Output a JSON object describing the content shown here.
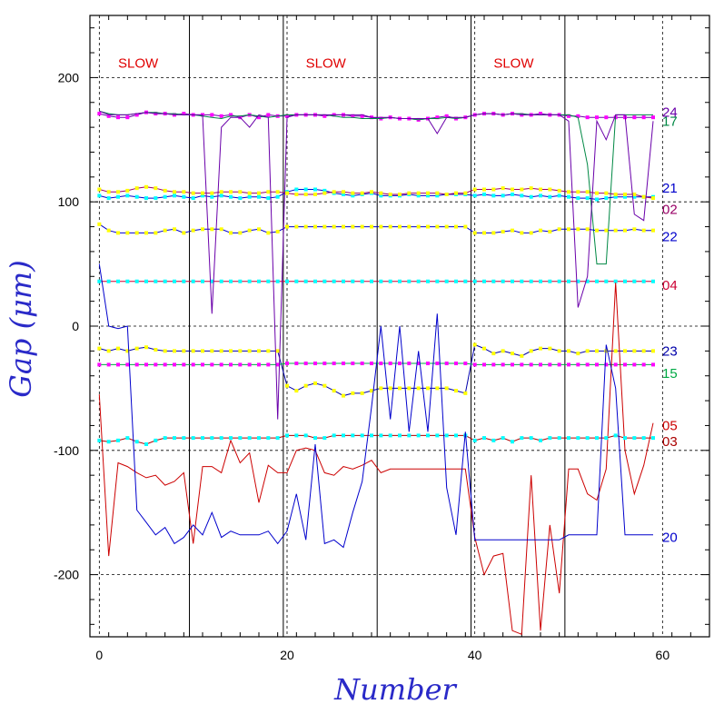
{
  "chart_data": {
    "type": "line",
    "title": "",
    "xlabel": "Number",
    "ylabel": "Gap (μm)",
    "xlim": [
      -1,
      65
    ],
    "ylim": [
      -250,
      250
    ],
    "xticks": [
      0,
      20,
      40,
      60
    ],
    "yticks": [
      200,
      100,
      0,
      -100,
      -200
    ],
    "grid": true,
    "slow_regions": [
      {
        "label": "SLOW",
        "x": 2
      },
      {
        "label": "SLOW",
        "x": 22
      },
      {
        "label": "SLOW",
        "x": 42
      }
    ],
    "boundaries": [
      9.6,
      19.6,
      29.6,
      39.6,
      49.6
    ],
    "series": [
      {
        "name": "24",
        "color": "#6a00aa",
        "label_y": 172,
        "marker": "#ff00ff",
        "values": [
          171,
          169,
          168,
          168,
          170,
          172,
          171,
          171,
          170,
          171,
          170,
          170,
          170,
          169,
          170,
          168,
          170,
          168,
          170,
          169,
          169,
          170,
          170,
          170,
          169,
          170,
          170,
          169,
          169,
          168,
          167,
          168,
          167,
          167,
          166,
          167,
          168,
          169,
          167,
          168,
          170,
          171,
          171,
          170,
          171,
          170,
          170,
          171,
          170,
          170,
          169,
          169,
          168,
          168,
          168,
          168,
          168,
          168,
          168,
          168
        ]
      },
      {
        "name": "17",
        "color": "#008844",
        "label_y": 165,
        "marker": "",
        "values": [
          173,
          171,
          170,
          170,
          171,
          172,
          172,
          171,
          171,
          170,
          170,
          169,
          168,
          167,
          169,
          169,
          170,
          169,
          168,
          169,
          170,
          170,
          170,
          170,
          170,
          169,
          168,
          168,
          167,
          167,
          167,
          168,
          167,
          167,
          166,
          167,
          167,
          168,
          167,
          168,
          170,
          171,
          171,
          170,
          171,
          171,
          170,
          170,
          170,
          170,
          170,
          168,
          130,
          50,
          50,
          170,
          170,
          170,
          170,
          170
        ]
      },
      {
        "name": "21",
        "color": "#0000cc",
        "label_y": 111,
        "marker": "#00ffff",
        "values": [
          105,
          103,
          104,
          105,
          104,
          103,
          103,
          104,
          105,
          104,
          103,
          105,
          104,
          105,
          104,
          103,
          104,
          104,
          103,
          104,
          108,
          110,
          110,
          110,
          109,
          107,
          106,
          105,
          106,
          107,
          105,
          105,
          105,
          106,
          105,
          105,
          105,
          106,
          106,
          106,
          105,
          106,
          105,
          105,
          106,
          105,
          104,
          105,
          104,
          105,
          104,
          103,
          103,
          102,
          103,
          104,
          104,
          104,
          104,
          104
        ]
      },
      {
        "name": "02",
        "color": "#990066",
        "label_y": 94,
        "marker": "#ffff00",
        "values": [
          110,
          108,
          108,
          109,
          111,
          112,
          111,
          109,
          108,
          108,
          107,
          107,
          107,
          108,
          108,
          108,
          107,
          107,
          108,
          108,
          107,
          106,
          106,
          106,
          107,
          108,
          108,
          107,
          107,
          108,
          107,
          106,
          106,
          107,
          107,
          107,
          107,
          106,
          107,
          107,
          110,
          110,
          110,
          111,
          110,
          110,
          111,
          110,
          110,
          109,
          108,
          108,
          108,
          107,
          107,
          106,
          106,
          106,
          104,
          103
        ]
      },
      {
        "name": "22",
        "color": "#0000cc",
        "label_y": 72,
        "marker": "#ffff00",
        "values": [
          82,
          77,
          75,
          75,
          75,
          75,
          75,
          77,
          78,
          75,
          77,
          78,
          78,
          78,
          75,
          75,
          77,
          78,
          75,
          76,
          80,
          80,
          80,
          80,
          80,
          80,
          80,
          80,
          80,
          80,
          80,
          80,
          80,
          80,
          80,
          80,
          80,
          80,
          80,
          80,
          75,
          75,
          75,
          76,
          77,
          75,
          75,
          77,
          76,
          78,
          78,
          78,
          78,
          77,
          77,
          77,
          77,
          78,
          77,
          77
        ]
      },
      {
        "name": "04",
        "color": "#cc0033",
        "label_y": 33,
        "marker": "#00ffff",
        "values": [
          36,
          36,
          36,
          36,
          36,
          36,
          36,
          36,
          36,
          36,
          36,
          36,
          36,
          36,
          36,
          36,
          36,
          36,
          36,
          36,
          36,
          36,
          36,
          36,
          36,
          36,
          36,
          36,
          36,
          36,
          36,
          36,
          36,
          36,
          36,
          36,
          36,
          36,
          36,
          36,
          36,
          36,
          36,
          36,
          36,
          36,
          36,
          36,
          36,
          36,
          36,
          36,
          36,
          36,
          36,
          36,
          36,
          36,
          36,
          36
        ]
      },
      {
        "name": "23",
        "color": "#0000aa",
        "label_y": -20,
        "marker": "#ffff00",
        "values": [
          -18,
          -20,
          -18,
          -20,
          -18,
          -17,
          -19,
          -20,
          -20,
          -20,
          -20,
          -20,
          -20,
          -20,
          -20,
          -20,
          -20,
          -20,
          -20,
          -20,
          -48,
          -52,
          -48,
          -46,
          -48,
          -52,
          -56,
          -54,
          -54,
          -52,
          -50,
          -50,
          -50,
          -50,
          -50,
          -50,
          -50,
          -50,
          -52,
          -54,
          -15,
          -18,
          -22,
          -20,
          -22,
          -24,
          -20,
          -18,
          -18,
          -20,
          -20,
          -22,
          -20,
          -20,
          -20,
          -20,
          -20,
          -20,
          -20,
          -20
        ]
      },
      {
        "name": "15",
        "color": "#00aa44",
        "label_y": -38,
        "marker": "#ff00ff",
        "values": [
          -31,
          -31,
          -31,
          -31,
          -31,
          -31,
          -31,
          -31,
          -31,
          -31,
          -31,
          -31,
          -31,
          -31,
          -31,
          -31,
          -31,
          -31,
          -31,
          -31,
          -30,
          -30,
          -30,
          -30,
          -30,
          -30,
          -30,
          -30,
          -30,
          -30,
          -30,
          -30,
          -30,
          -30,
          -30,
          -30,
          -30,
          -30,
          -30,
          -30,
          -31,
          -31,
          -31,
          -31,
          -31,
          -31,
          -31,
          -31,
          -31,
          -31,
          -31,
          -31,
          -31,
          -31,
          -31,
          -31,
          -31,
          -31,
          -31,
          -31
        ]
      },
      {
        "name": "05",
        "color": "#cc0000",
        "label_y": -80,
        "marker": "",
        "values": [
          -55,
          -185,
          -110,
          -113,
          -118,
          -122,
          -120,
          -128,
          -125,
          -118,
          -175,
          -113,
          -113,
          -118,
          -92,
          -110,
          -102,
          -142,
          -112,
          -118,
          -118,
          -100,
          -98,
          -100,
          -118,
          -120,
          -113,
          -115,
          -112,
          -108,
          -118,
          -115,
          -115,
          -115,
          -115,
          -115,
          -115,
          -115,
          -115,
          -115,
          -170,
          -200,
          -185,
          -183,
          -245,
          -248,
          -120,
          -245,
          -160,
          -215,
          -115,
          -115,
          -135,
          -140,
          -115,
          35,
          -100,
          -135,
          -112,
          -78
        ]
      },
      {
        "name": "03",
        "color": "#aa0000",
        "label_y": -93,
        "marker": "#00ffff",
        "values": [
          -92,
          -93,
          -92,
          -90,
          -93,
          -95,
          -92,
          -90,
          -90,
          -90,
          -90,
          -90,
          -90,
          -90,
          -90,
          -90,
          -90,
          -90,
          -90,
          -90,
          -88,
          -88,
          -88,
          -90,
          -90,
          -88,
          -88,
          -88,
          -88,
          -88,
          -88,
          -88,
          -88,
          -88,
          -88,
          -88,
          -88,
          -88,
          -88,
          -88,
          -92,
          -90,
          -92,
          -90,
          -93,
          -90,
          -90,
          -92,
          -90,
          -90,
          -90,
          -90,
          -90,
          -90,
          -90,
          -88,
          -90,
          -90,
          -90,
          -90
        ]
      },
      {
        "name": "20",
        "color": "#0000cc",
        "label_y": -170,
        "marker": "",
        "values": [
          50,
          0,
          -2,
          0,
          -148,
          -158,
          -168,
          -162,
          -175,
          -170,
          -160,
          -168,
          -150,
          -170,
          -165,
          -168,
          -168,
          -168,
          -165,
          -175,
          -165,
          -135,
          -172,
          -95,
          -175,
          -172,
          -178,
          -150,
          -125,
          -65,
          0,
          -75,
          0,
          -85,
          -20,
          -85,
          10,
          -130,
          -168,
          -85,
          -172,
          -172,
          -172,
          -172,
          -172,
          -172,
          -172,
          -172,
          -172,
          -172,
          -168,
          -168,
          -168,
          -168,
          -15,
          -50,
          -168,
          -168,
          -168,
          -168
        ]
      },
      {
        "name": "",
        "color": "#6a00aa",
        "label_y": null,
        "marker": "",
        "values": [
          173,
          170,
          170,
          170,
          171,
          172,
          171,
          171,
          170,
          170,
          170,
          170,
          10,
          160,
          168,
          168,
          160,
          170,
          168,
          -75,
          168,
          170,
          170,
          170,
          170,
          170,
          170,
          170,
          170,
          168,
          168,
          168,
          167,
          167,
          167,
          167,
          155,
          168,
          168,
          168,
          170,
          171,
          171,
          170,
          171,
          170,
          170,
          170,
          170,
          170,
          165,
          15,
          40,
          165,
          150,
          170,
          170,
          90,
          85,
          165
        ]
      }
    ]
  }
}
